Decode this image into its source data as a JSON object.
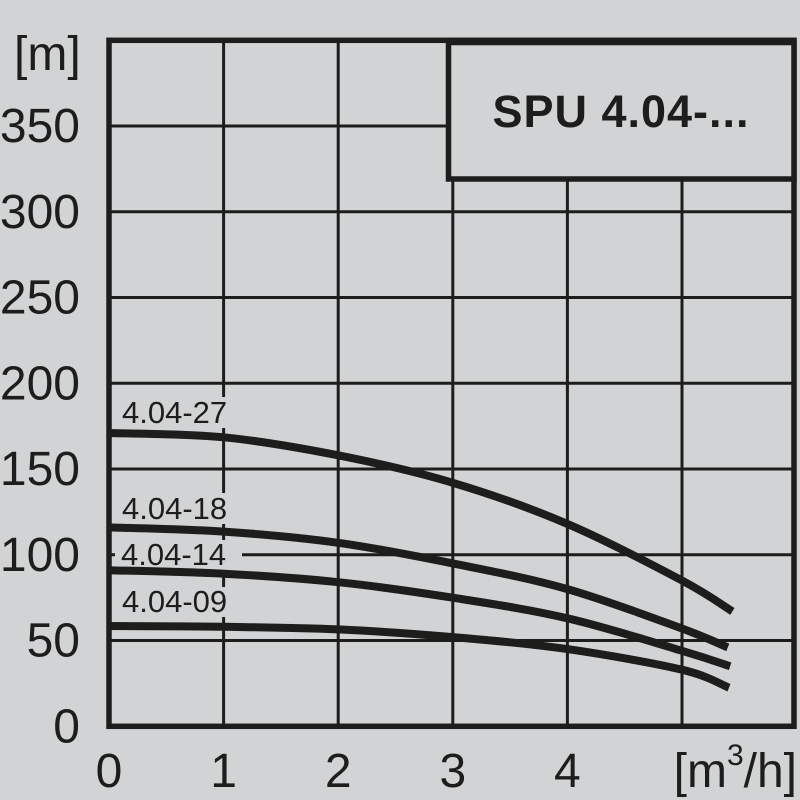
{
  "colors": {
    "background": "#d2d3d5",
    "ink": "#1d1d1b"
  },
  "title_box": {
    "label": "SPU 4.04-..."
  },
  "labels": {
    "y_unit": "[m]",
    "x_unit_base": "[m",
    "x_unit_sup": "3",
    "x_unit_rest": "/h]"
  },
  "chart_data": {
    "type": "line",
    "title": "SPU 4.04-...",
    "xlabel": "[m3/h]",
    "ylabel": "[m]",
    "xlim": [
      0,
      6
    ],
    "ylim": [
      0,
      400
    ],
    "grid": true,
    "x_ticks": [
      [
        0,
        "0"
      ],
      [
        1,
        "1"
      ],
      [
        2,
        "2"
      ],
      [
        3,
        "3"
      ],
      [
        4,
        "4"
      ]
    ],
    "y_ticks": [
      [
        0,
        "0"
      ],
      [
        50,
        "50"
      ],
      [
        100,
        "100"
      ],
      [
        150,
        "150"
      ],
      [
        200,
        "200"
      ],
      [
        250,
        "250"
      ],
      [
        300,
        "300"
      ],
      [
        350,
        "350"
      ]
    ],
    "x_gridlines": [
      1,
      2,
      3,
      4,
      5
    ],
    "y_gridlines": [
      50,
      100,
      150,
      200,
      250,
      300,
      350
    ],
    "series": [
      {
        "name": "4.04-27",
        "points": [
          [
            0,
            171
          ],
          [
            1,
            168.5
          ],
          [
            2,
            158
          ],
          [
            3,
            142
          ],
          [
            4,
            118
          ],
          [
            5,
            85
          ],
          [
            5.44,
            67
          ]
        ]
      },
      {
        "name": "4.04-18",
        "points": [
          [
            0,
            116
          ],
          [
            1,
            113.5
          ],
          [
            2,
            107
          ],
          [
            3,
            95
          ],
          [
            4,
            80
          ],
          [
            5,
            57
          ],
          [
            5.4,
            46
          ]
        ]
      },
      {
        "name": "4.04-14",
        "points": [
          [
            0,
            91
          ],
          [
            1,
            89
          ],
          [
            2,
            84
          ],
          [
            3,
            75
          ],
          [
            4,
            63
          ],
          [
            5,
            44
          ],
          [
            5.42,
            35
          ]
        ]
      },
      {
        "name": "4.04-09",
        "points": [
          [
            0,
            58.5
          ],
          [
            1,
            58
          ],
          [
            2,
            56.5
          ],
          [
            3,
            52
          ],
          [
            4,
            45
          ],
          [
            5,
            33
          ],
          [
            5.41,
            22.5
          ]
        ]
      }
    ]
  }
}
